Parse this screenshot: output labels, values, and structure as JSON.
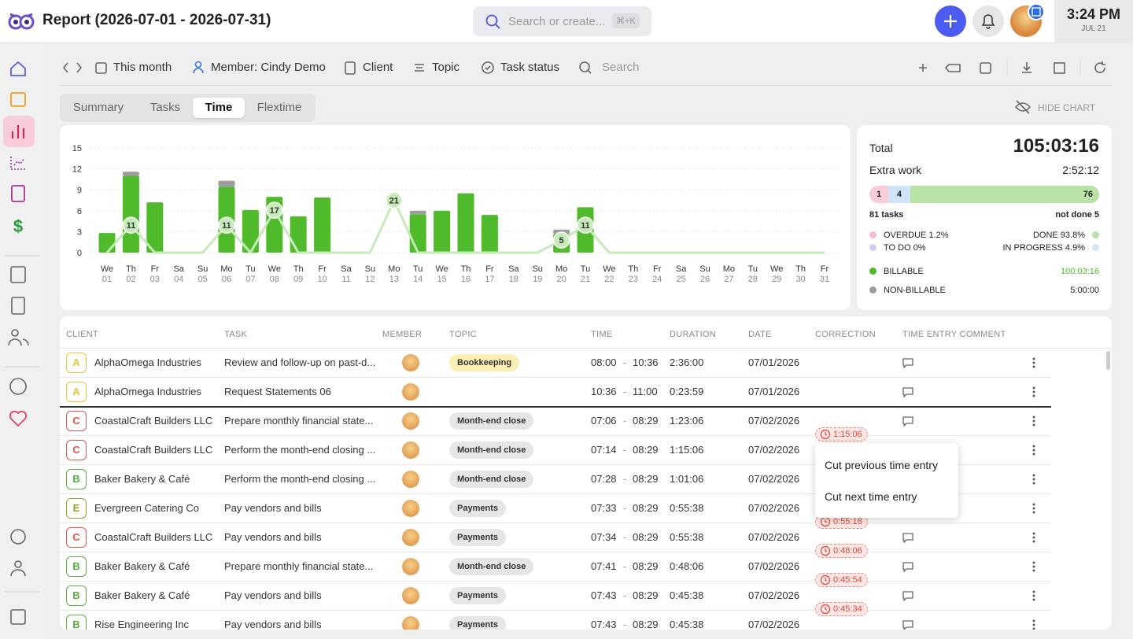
{
  "header": {
    "title": "Report (2026-07-01 - 2026-07-31)",
    "search_placeholder": "Search or create...",
    "shortcut": "⌘+K",
    "time": "3:24 PM",
    "date": "JUL 21"
  },
  "filters": {
    "items": [
      "This month",
      "Member: Cindy Demo",
      "Client",
      "Topic",
      "Task status"
    ],
    "search": "Search"
  },
  "tabs": {
    "items": [
      "Summary",
      "Tasks",
      "Time",
      "Flextime"
    ],
    "active": 2,
    "hide_chart": "HIDE CHART"
  },
  "chart_data": {
    "type": "bar",
    "categories": [
      [
        "We",
        "01"
      ],
      [
        "Th",
        "02"
      ],
      [
        "Fr",
        "03"
      ],
      [
        "Sa",
        "04"
      ],
      [
        "Su",
        "05"
      ],
      [
        "Mo",
        "06"
      ],
      [
        "Tu",
        "07"
      ],
      [
        "We",
        "08"
      ],
      [
        "Th",
        "09"
      ],
      [
        "Fr",
        "10"
      ],
      [
        "Sa",
        "11"
      ],
      [
        "Su",
        "12"
      ],
      [
        "Mo",
        "13"
      ],
      [
        "Tu",
        "14"
      ],
      [
        "We",
        "15"
      ],
      [
        "Th",
        "16"
      ],
      [
        "Fr",
        "17"
      ],
      [
        "Sa",
        "18"
      ],
      [
        "Su",
        "19"
      ],
      [
        "Mo",
        "20"
      ],
      [
        "Tu",
        "21"
      ],
      [
        "We",
        "22"
      ],
      [
        "Th",
        "23"
      ],
      [
        "Fr",
        "24"
      ],
      [
        "Sa",
        "25"
      ],
      [
        "Su",
        "26"
      ],
      [
        "Mo",
        "27"
      ],
      [
        "Tu",
        "28"
      ],
      [
        "We",
        "29"
      ],
      [
        "Th",
        "30"
      ],
      [
        "Fr",
        "31"
      ]
    ],
    "series": [
      {
        "name": "BILLABLE",
        "color": "#4fbb2b",
        "values": [
          2.8,
          11.0,
          7.2,
          0,
          0,
          9.4,
          6.1,
          8.0,
          5.2,
          7.9,
          0,
          0,
          0,
          5.5,
          6.0,
          8.5,
          5.4,
          0,
          0,
          2.7,
          6.5,
          0,
          0,
          0,
          0,
          0,
          0,
          0,
          0,
          0,
          0
        ]
      },
      {
        "name": "NON-BILLABLE",
        "color": "#9e9e9e",
        "values": [
          0,
          0.6,
          0,
          0,
          0,
          0.9,
          0,
          0,
          0,
          0,
          0,
          0,
          0,
          0.5,
          0,
          0,
          0,
          0,
          0,
          0.6,
          0,
          0,
          0,
          0,
          0,
          0,
          0,
          0,
          0,
          0,
          0
        ]
      },
      {
        "type": "line",
        "axis": "y2",
        "color": "#c6eab8",
        "values": [
          0,
          11,
          0,
          0,
          0,
          11,
          0,
          17,
          0,
          0,
          0,
          0,
          21,
          0,
          0,
          0,
          0,
          0,
          0,
          5,
          11,
          0,
          0,
          0,
          0,
          0,
          0,
          0,
          0,
          0,
          0
        ]
      }
    ],
    "ylim": [
      0,
      15
    ],
    "yticks": [
      0,
      3,
      6,
      9,
      12,
      15
    ],
    "y2lim": [
      0,
      42
    ],
    "grid": true,
    "stacked": true
  },
  "summary": {
    "total_label": "Total",
    "total": "105:03:16",
    "extra_label": "Extra work",
    "extra": "2:52:12",
    "progress": [
      {
        "value": 1,
        "color": "#f8cdd7"
      },
      {
        "value": 4,
        "color": "#cfe4fb"
      },
      {
        "value": 76,
        "color": "#b9e3a5"
      }
    ],
    "tasks": "81 tasks",
    "not_done": "not done 5",
    "status": [
      {
        "label": "OVERDUE 1.2%",
        "color": "#f7bccb"
      },
      {
        "label": "DONE 93.8%",
        "color": "#b9e3a9"
      },
      {
        "label": "TO DO 0%",
        "color": "#d3ccf0"
      },
      {
        "label": "IN PROGRESS 4.9%",
        "color": "#d3e6f8"
      }
    ],
    "billable": "100:03:16",
    "non_billable": "5:00:00"
  },
  "table": {
    "columns": [
      "CLIENT",
      "TASK",
      "MEMBER",
      "TOPIC",
      "TIME",
      "DURATION",
      "DATE",
      "CORRECTION",
      "TIME ENTRY COMMENT"
    ],
    "time_separator": "-",
    "rows": [
      {
        "badge": "A",
        "badge_color": "#e6c53a",
        "client": "AlphaOmega Industries",
        "task": "Review and follow-up on past-d...",
        "topic": "Bookkeeping",
        "topic_color": "#fcefb4",
        "start": "08:00",
        "end": "10:36",
        "duration": "2:36:00",
        "date": "07/01/2026",
        "correction": null
      },
      {
        "badge": "A",
        "badge_color": "#e6c53a",
        "client": "AlphaOmega Industries",
        "task": "Request Statements 06",
        "topic": null,
        "topic_color": null,
        "start": "10:36",
        "end": "11:00",
        "duration": "0:23:59",
        "date": "07/01/2026",
        "correction": null
      },
      {
        "badge": "C",
        "badge_color": "#e5534b",
        "client": "CoastalCraft Builders LLC",
        "task": "Prepare monthly financial state...",
        "topic": "Month-end close",
        "topic_color": "#e6e6e6",
        "start": "07:06",
        "end": "08:29",
        "duration": "1:23:06",
        "date": "07/02/2026",
        "correction": "1:15:06"
      },
      {
        "badge": "C",
        "badge_color": "#e5534b",
        "client": "CoastalCraft Builders LLC",
        "task": "Perform the month-end closing ...",
        "topic": "Month-end close",
        "topic_color": "#e6e6e6",
        "start": "07:14",
        "end": "08:29",
        "duration": "1:15:06",
        "date": "07/02/2026",
        "correction": null
      },
      {
        "badge": "B",
        "badge_color": "#56b03c",
        "client": "Baker Bakery & Café",
        "task": "Perform the month-end closing ...",
        "topic": "Month-end close",
        "topic_color": "#e6e6e6",
        "start": "07:28",
        "end": "08:29",
        "duration": "1:01:06",
        "date": "07/02/2026",
        "correction": null
      },
      {
        "badge": "E",
        "badge_color": "#99a02a",
        "client": "Evergreen Catering Co",
        "task": "Pay vendors and bills",
        "topic": "Payments",
        "topic_color": "#e6e6e6",
        "start": "07:33",
        "end": "08:29",
        "duration": "0:55:38",
        "date": "07/02/2026",
        "correction": "0:55:18"
      },
      {
        "badge": "C",
        "badge_color": "#e5534b",
        "client": "CoastalCraft Builders LLC",
        "task": "Pay vendors and bills",
        "topic": "Payments",
        "topic_color": "#e6e6e6",
        "start": "07:34",
        "end": "08:29",
        "duration": "0:55:38",
        "date": "07/02/2026",
        "correction": "0:48:06"
      },
      {
        "badge": "B",
        "badge_color": "#56b03c",
        "client": "Baker Bakery & Café",
        "task": "Prepare monthly financial state...",
        "topic": "Month-end close",
        "topic_color": "#e6e6e6",
        "start": "07:41",
        "end": "08:29",
        "duration": "0:48:06",
        "date": "07/02/2026",
        "correction": "0:45:54"
      },
      {
        "badge": "B",
        "badge_color": "#56b03c",
        "client": "Baker Bakery & Café",
        "task": "Pay vendors and bills",
        "topic": "Payments",
        "topic_color": "#e6e6e6",
        "start": "07:43",
        "end": "08:29",
        "duration": "0:45:38",
        "date": "07/02/2026",
        "correction": "0:45:34"
      },
      {
        "badge": "B",
        "badge_color": "#56b03c",
        "client": "Rise Engineering Inc",
        "task": "Pay vendors and bills",
        "topic": "Payments",
        "topic_color": "#e6e6e6",
        "start": "07:43",
        "end": "08:29",
        "duration": "0:45:38",
        "date": "07/02/2026",
        "correction": null
      }
    ]
  },
  "menu": {
    "items": [
      "Cut previous time entry",
      "Cut next time entry"
    ]
  }
}
